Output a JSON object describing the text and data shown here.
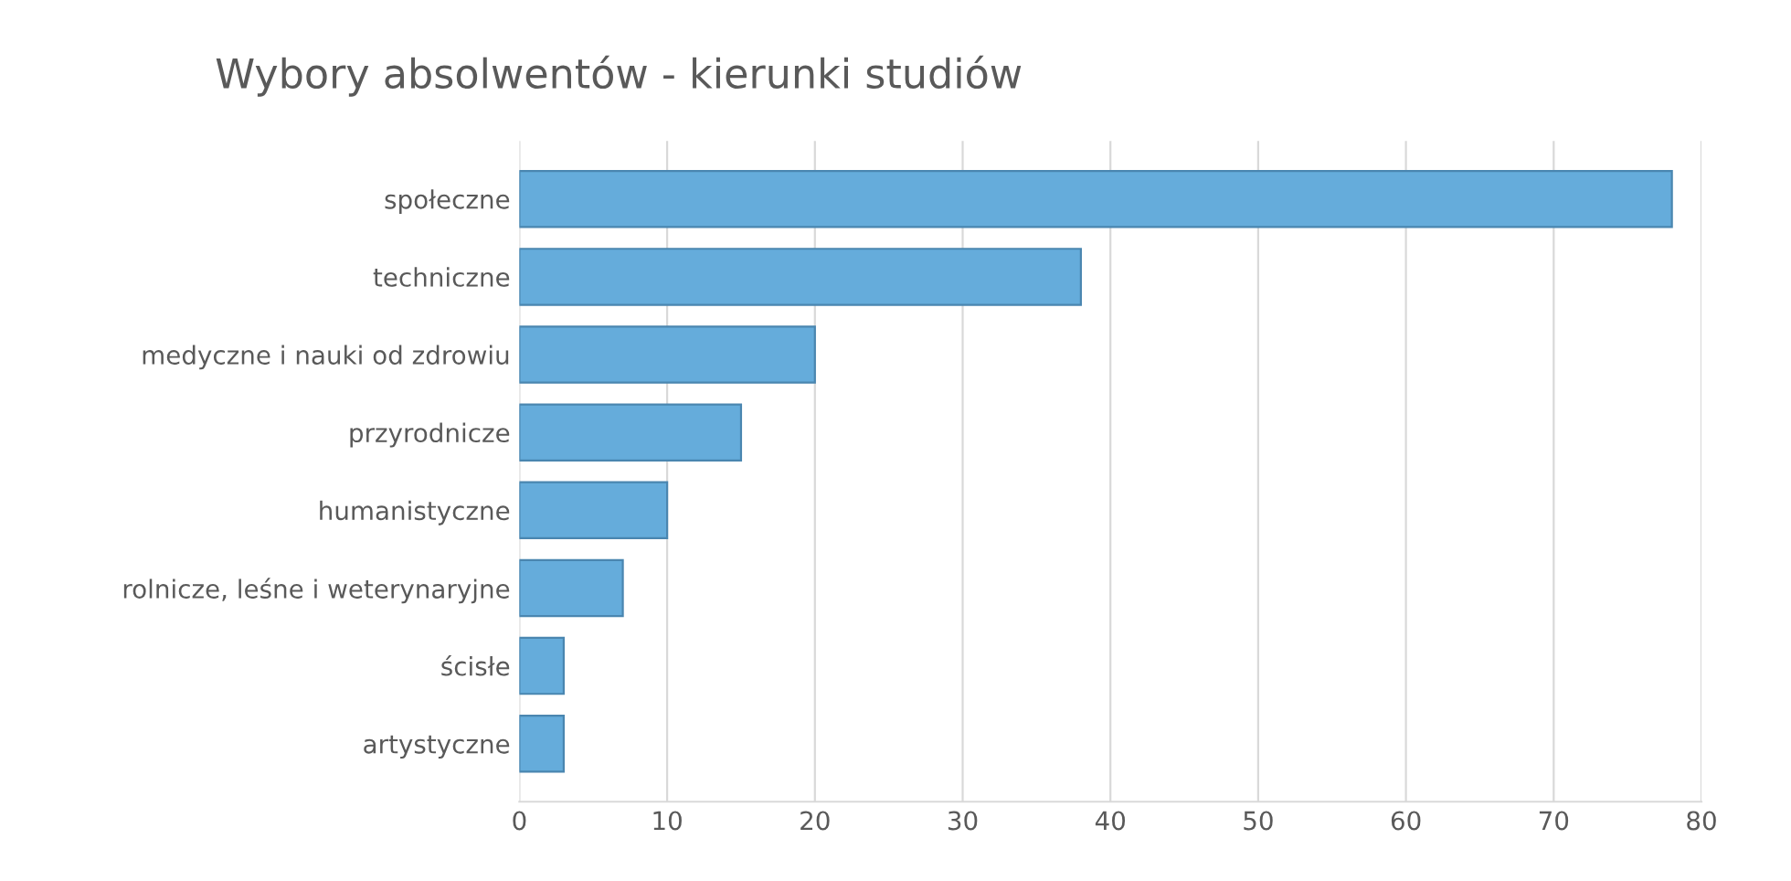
{
  "chart_data": {
    "type": "bar",
    "orientation": "horizontal",
    "title": "Wybory absolwentów - kierunki studiów",
    "categories": [
      "społeczne",
      "techniczne",
      "medyczne i nauki od zdrowiu",
      "przyrodnicze",
      "humanistyczne",
      "rolnicze, leśne i weterynaryjne",
      "ścisłe",
      "artystyczne"
    ],
    "values": [
      78,
      38,
      20,
      15,
      10,
      7,
      3,
      3
    ],
    "color": "#65acdb",
    "xlim": [
      0,
      80
    ],
    "xticks": [
      0,
      10,
      20,
      30,
      40,
      50,
      60,
      70,
      80
    ],
    "grid": "x"
  }
}
